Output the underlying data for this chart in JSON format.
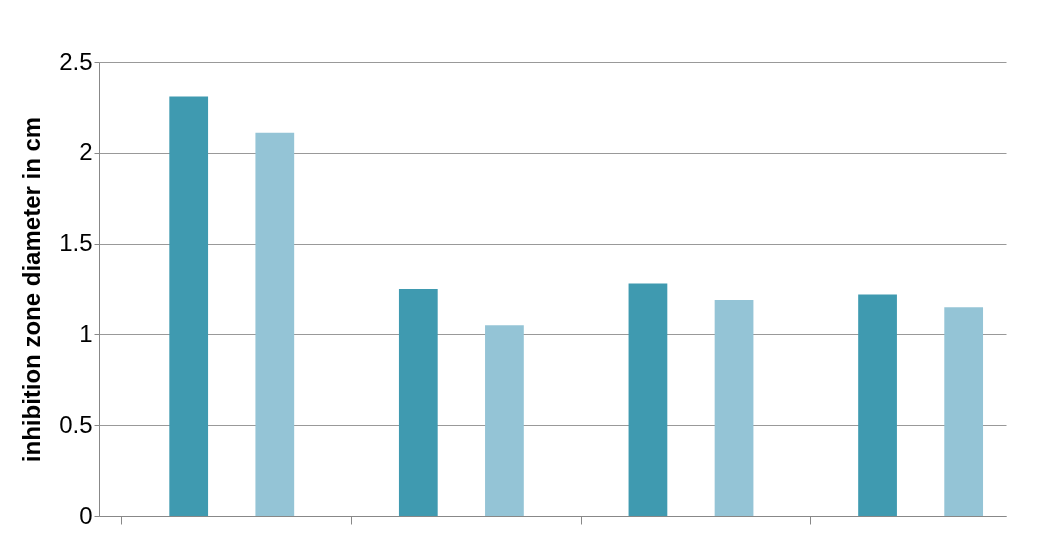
{
  "chart_data": {
    "type": "bar",
    "ylabel": "inhibition zone diameter in cm",
    "categories": [
      null,
      null,
      null,
      null
    ],
    "series": [
      {
        "color": "#3f9ab0",
        "values": [
          2.31,
          1.25,
          1.28,
          1.22
        ]
      },
      {
        "color": "#94c4d6",
        "values": [
          2.11,
          1.05,
          1.19,
          1.15
        ]
      }
    ],
    "ylim": [
      0,
      2.5
    ],
    "yticks": [
      0,
      0.5,
      1,
      1.5,
      2,
      2.5
    ],
    "grid": "y",
    "legend": false,
    "tick_labels": "y"
  }
}
